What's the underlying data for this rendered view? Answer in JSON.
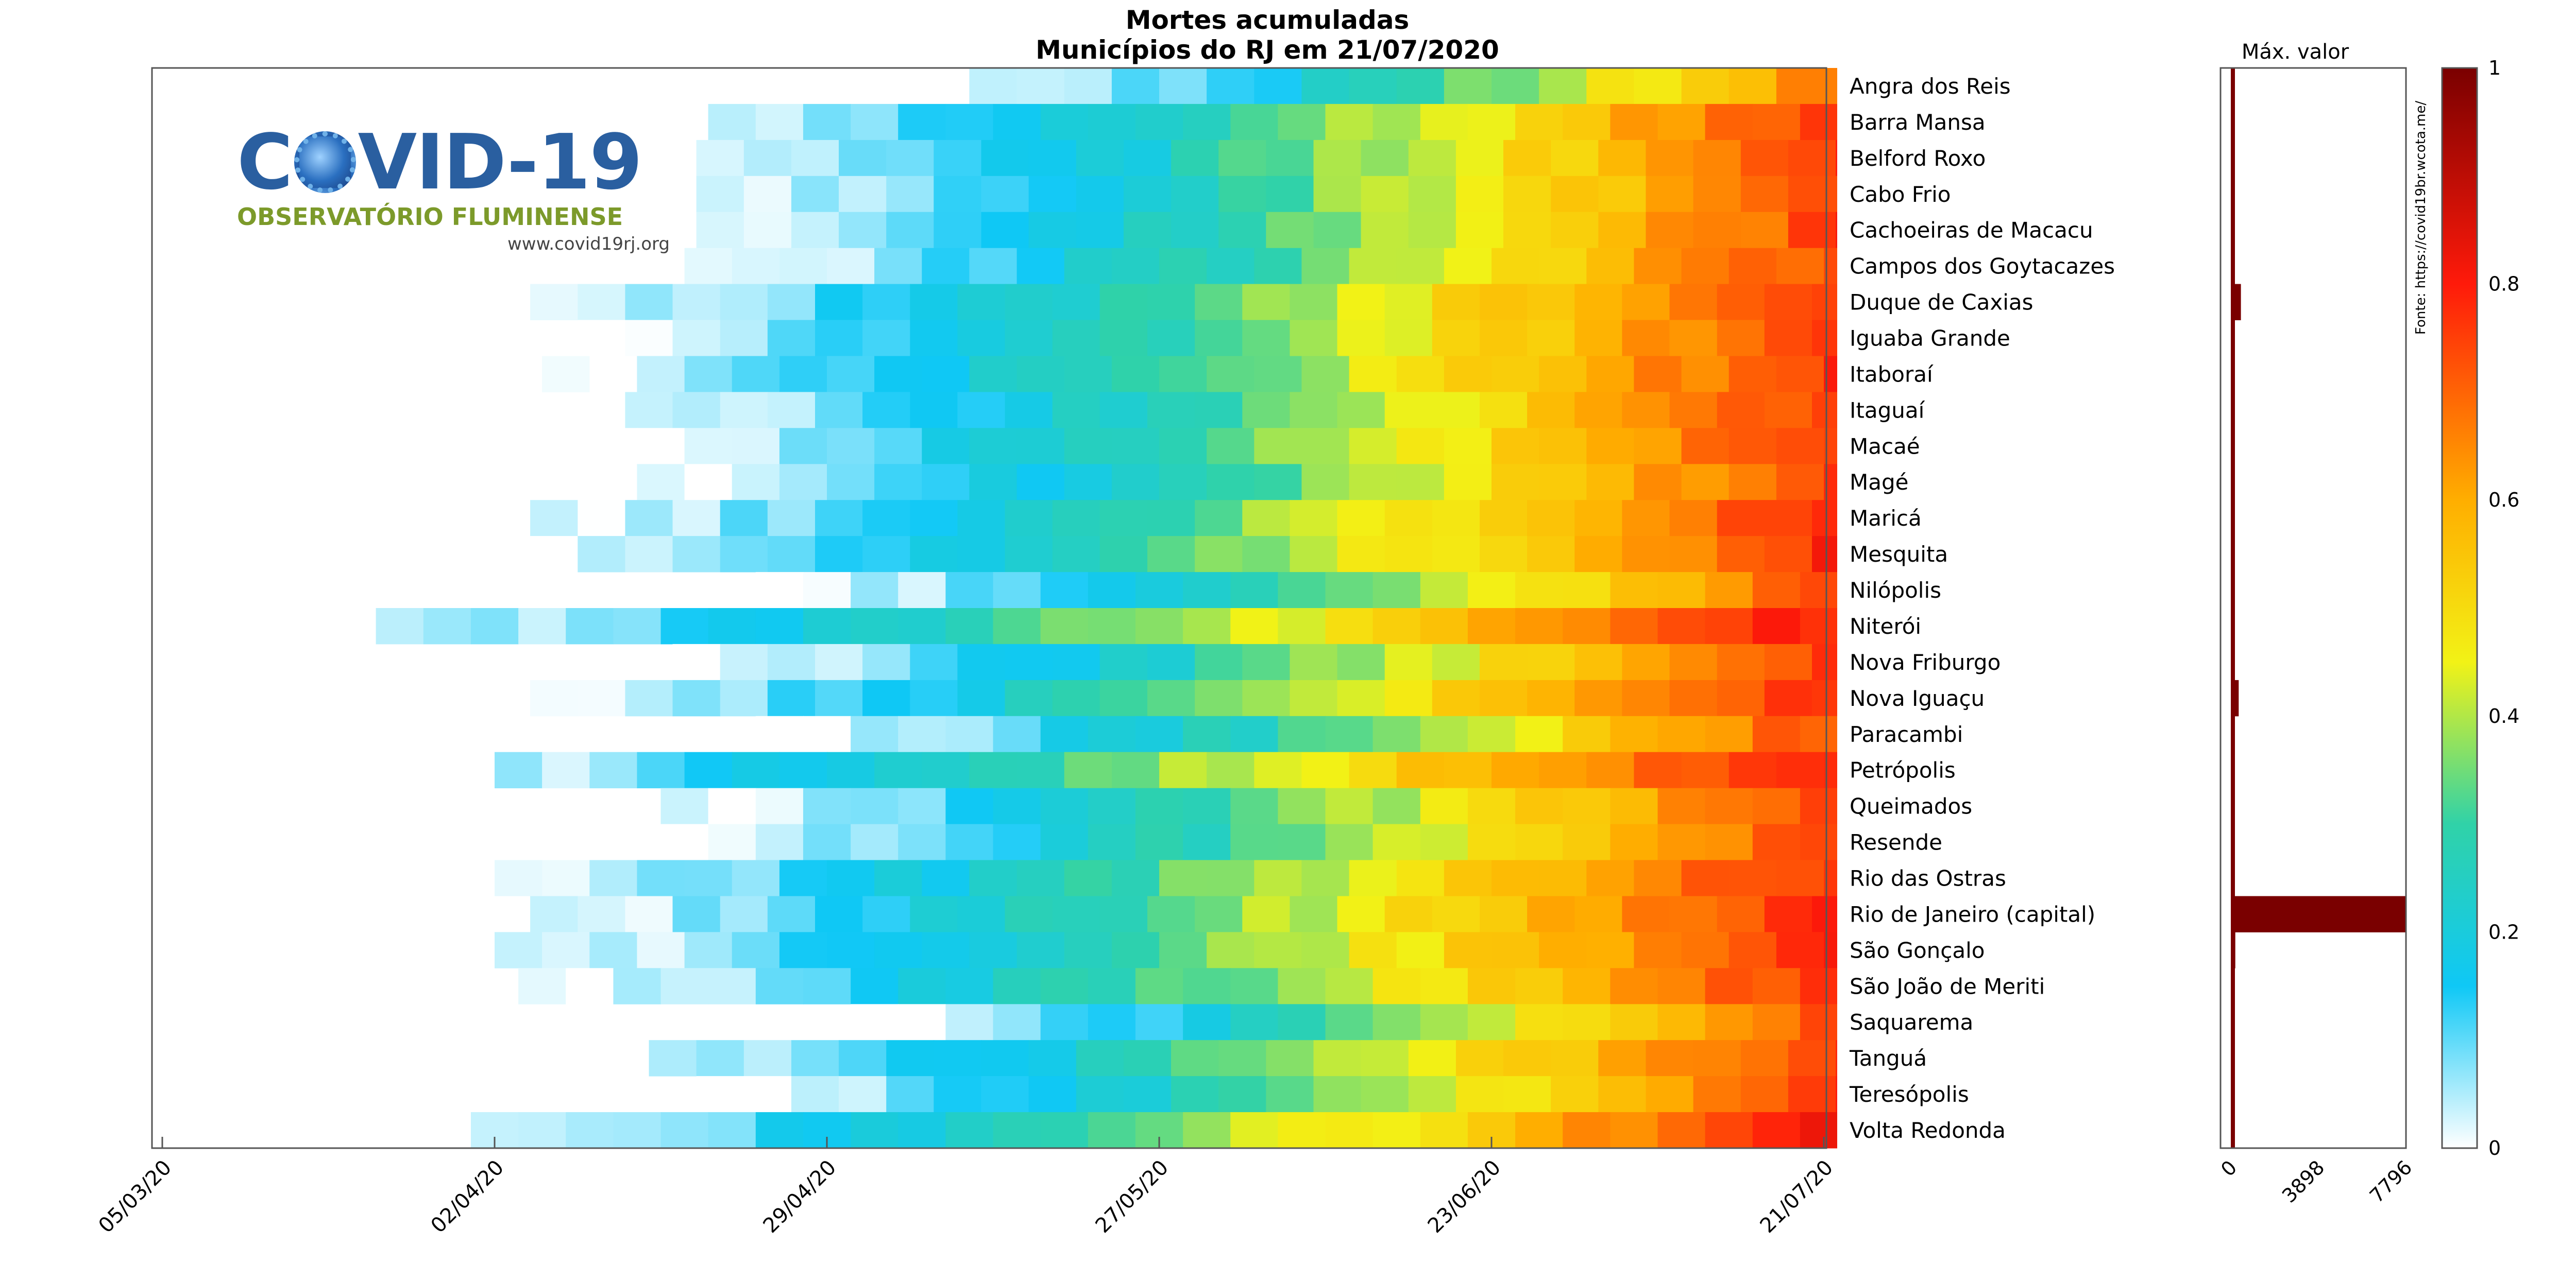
{
  "chart_data": {
    "type": "heatmap",
    "title": "Mortes acumuladas",
    "subtitle": "Municípios do RJ em 21/07/2020",
    "x_tick_labels": [
      "05/03/20",
      "02/04/20",
      "29/04/20",
      "27/05/20",
      "23/06/20",
      "21/07/20"
    ],
    "colorbar_ticks": [
      "0",
      "0.2",
      "0.4",
      "0.6",
      "0.8",
      "1"
    ],
    "colorbar_range": [
      0,
      1
    ],
    "side_panel": {
      "title": "Máx. valor",
      "tick_labels": [
        "0",
        "3898",
        "7796"
      ],
      "xlim": [
        0,
        7796
      ]
    },
    "source": "Fonte: https://covid19br.wcota.me/",
    "municipalities": [
      {
        "name": "Angra dos Reis",
        "start_day": 68,
        "seed": 1,
        "max": 25
      },
      {
        "name": "Barra Mansa",
        "start_day": 42,
        "seed": 2,
        "max": 20
      },
      {
        "name": "Belford Roxo",
        "start_day": 45,
        "seed": 3,
        "max": 30
      },
      {
        "name": "Cabo Frio",
        "start_day": 45,
        "seed": 4,
        "max": 30
      },
      {
        "name": "Cachoeiras de Macacu",
        "start_day": 45,
        "seed": 5,
        "max": 15
      },
      {
        "name": "Campos dos Goytacazes",
        "start_day": 44,
        "seed": 6,
        "max": 20
      },
      {
        "name": "Duque de Caxias",
        "start_day": 31,
        "seed": 7,
        "max": 450
      },
      {
        "name": "Iguaba Grande",
        "start_day": 35,
        "seed": 8,
        "max": 10
      },
      {
        "name": "Itaboraí",
        "start_day": 32,
        "seed": 9,
        "max": 30
      },
      {
        "name": "Itaguaí",
        "start_day": 39,
        "seed": 10,
        "max": 25
      },
      {
        "name": "Macaé",
        "start_day": 36,
        "seed": 11,
        "max": 30
      },
      {
        "name": "Magé",
        "start_day": 40,
        "seed": 12,
        "max": 35
      },
      {
        "name": "Maricá",
        "start_day": 31,
        "seed": 13,
        "max": 20
      },
      {
        "name": "Mesquita",
        "start_day": 31,
        "seed": 14,
        "max": 25
      },
      {
        "name": "Nilópolis",
        "start_day": 50,
        "seed": 15,
        "max": 30
      },
      {
        "name": "Niterói",
        "start_day": 14,
        "seed": 16,
        "max": 30
      },
      {
        "name": "Nova Friburgo",
        "start_day": 43,
        "seed": 17,
        "max": 15
      },
      {
        "name": "Nova Iguaçu",
        "start_day": 31,
        "seed": 18,
        "max": 350
      },
      {
        "name": "Paracambi",
        "start_day": 50,
        "seed": 19,
        "max": 15
      },
      {
        "name": "Petrópolis",
        "start_day": 16,
        "seed": 20,
        "max": 30
      },
      {
        "name": "Queimados",
        "start_day": 42,
        "seed": 21,
        "max": 25
      },
      {
        "name": "Resende",
        "start_day": 42,
        "seed": 22,
        "max": 15
      },
      {
        "name": "Rio das Ostras",
        "start_day": 28,
        "seed": 23,
        "max": 20
      },
      {
        "name": "Rio de Janeiro (capital)",
        "start_day": 27,
        "seed": 24,
        "max": 7796
      },
      {
        "name": "São Gonçalo",
        "start_day": 28,
        "seed": 25,
        "max": 200
      },
      {
        "name": "São João de Meriti",
        "start_day": 30,
        "seed": 26,
        "max": 30
      },
      {
        "name": "Saquarema",
        "start_day": 58,
        "seed": 27,
        "max": 10
      },
      {
        "name": "Tanguá",
        "start_day": 37,
        "seed": 28,
        "max": 10
      },
      {
        "name": "Teresópolis",
        "start_day": 45,
        "seed": 29,
        "max": 30
      },
      {
        "name": "Volta Redonda",
        "start_day": 22,
        "seed": 30,
        "max": 20
      }
    ]
  },
  "logo": {
    "title_left": "C",
    "title_right": "VID-19",
    "subtitle": "OBSERVATÓRIO FLUMINENSE",
    "url": "www.covid19rj.org"
  }
}
